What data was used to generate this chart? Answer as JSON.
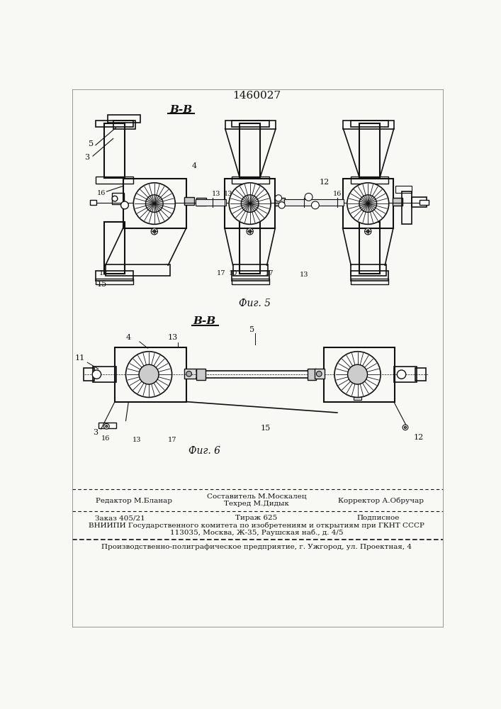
{
  "title_number": "1460027",
  "fig5_label": "В-В",
  "fig6_label": "В-В",
  "fig5_caption": "Фиг. 5",
  "fig6_caption": "Фиг. 6",
  "bg_color": "#f8f8f5",
  "line_color": "#111111",
  "footer": {
    "col1_line1": "Редактор М.Бланар",
    "col2_line1": "Составитель М.Москалец",
    "col2_line2": "Техред М.Дидык",
    "col3_line1": "Корректор А.Обручар",
    "row2_col1": "Заказ 405/21",
    "row2_col2": "Тираж 625",
    "row2_col3": "Подписное",
    "row3": "ВНИИПИ Государственного комитета по изобретениям и открытиям при ГКНТ СССР",
    "row4": "113035, Москва, Ж-35, Раушская наб., д. 4/5",
    "row5": "Производственно-полиграфическое предприятие, г. Ужгород, ул. Проектная, 4"
  }
}
